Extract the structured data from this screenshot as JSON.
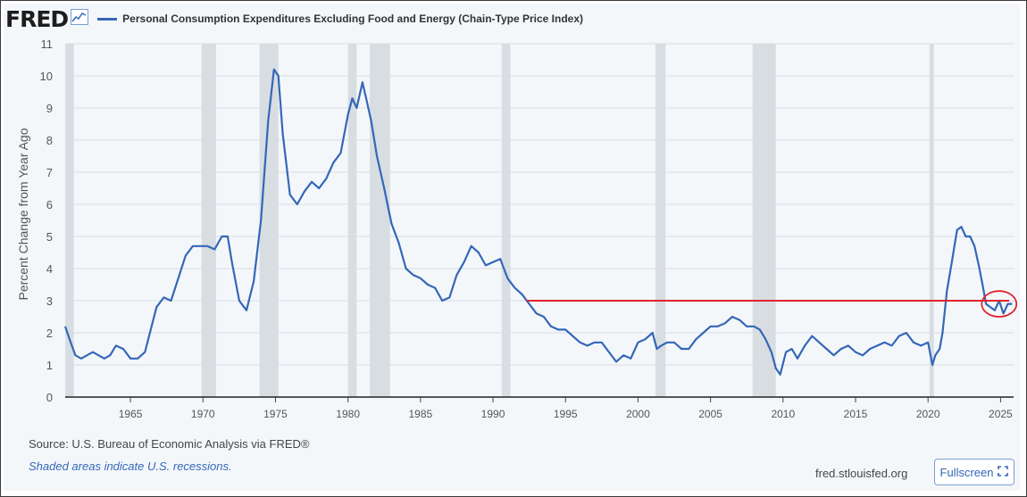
{
  "header": {
    "logo": "FRED",
    "series_title": "Personal Consumption Expenditures Excluding Food and Energy (Chain-Type Price Index)"
  },
  "footer": {
    "source": "Source: U.S. Bureau of Economic Analysis via FRED®",
    "note": "Shaded areas indicate U.S. recessions.",
    "site": "fred.stlouisfed.org",
    "fullscreen_label": "Fullscreen"
  },
  "colors": {
    "series": "#3467b8",
    "recession": "#d8dde2",
    "grid": "#d9dde3",
    "annotation": "#e0242c"
  },
  "chart_data": {
    "type": "line",
    "title": "Personal Consumption Expenditures Excluding Food and Energy (Chain-Type Price Index)",
    "ylabel": "Percent Change from Year Ago",
    "xlabel": "",
    "xlim": [
      1960.5,
      2025.9
    ],
    "ylim": [
      0,
      11
    ],
    "yticks": [
      0,
      1,
      2,
      3,
      4,
      5,
      6,
      7,
      8,
      9,
      10,
      11
    ],
    "xticks": [
      1965,
      1970,
      1975,
      1980,
      1985,
      1990,
      1995,
      2000,
      2005,
      2010,
      2015,
      2020,
      2025
    ],
    "grid": "horizontal",
    "recessions": [
      [
        1960.3,
        1961.1
      ],
      [
        1969.9,
        1970.9
      ],
      [
        1973.9,
        1975.2
      ],
      [
        1980.0,
        1980.6
      ],
      [
        1981.5,
        1982.9
      ],
      [
        1990.6,
        1991.2
      ],
      [
        2001.2,
        2001.9
      ],
      [
        2007.9,
        2009.5
      ],
      [
        2020.1,
        2020.4
      ]
    ],
    "series": [
      {
        "name": "Personal Consumption Expenditures Excluding Food and Energy (Chain-Type Price Index)",
        "x": [
          1960.5,
          1960.8,
          1961.2,
          1961.6,
          1962,
          1962.4,
          1962.8,
          1963.2,
          1963.6,
          1964,
          1964.5,
          1965,
          1965.5,
          1966,
          1966.4,
          1966.8,
          1967.3,
          1967.8,
          1968.3,
          1968.8,
          1969.3,
          1969.8,
          1970.3,
          1970.8,
          1971.3,
          1971.7,
          1972,
          1972.5,
          1973,
          1973.5,
          1974,
          1974.5,
          1974.9,
          1975.2,
          1975.5,
          1976,
          1976.5,
          1977,
          1977.5,
          1978,
          1978.5,
          1979,
          1979.5,
          1980,
          1980.3,
          1980.6,
          1981,
          1981.3,
          1981.6,
          1982,
          1982.5,
          1983,
          1983.5,
          1984,
          1984.5,
          1985,
          1985.5,
          1986,
          1986.5,
          1987,
          1987.5,
          1988,
          1988.5,
          1989,
          1989.5,
          1990,
          1990.5,
          1991,
          1991.5,
          1992,
          1992.5,
          1993,
          1993.5,
          1994,
          1994.5,
          1995,
          1995.5,
          1996,
          1996.5,
          1997,
          1997.5,
          1998,
          1998.5,
          1999,
          1999.5,
          2000,
          2000.5,
          2001,
          2001.3,
          2001.6,
          2002,
          2002.5,
          2003,
          2003.5,
          2004,
          2004.5,
          2005,
          2005.5,
          2006,
          2006.5,
          2007,
          2007.5,
          2008,
          2008.4,
          2008.8,
          2009.2,
          2009.5,
          2009.8,
          2010.2,
          2010.6,
          2011,
          2011.5,
          2012,
          2012.5,
          2013,
          2013.5,
          2014,
          2014.5,
          2015,
          2015.5,
          2016,
          2016.5,
          2017,
          2017.5,
          2018,
          2018.5,
          2019,
          2019.5,
          2020,
          2020.3,
          2020.5,
          2020.8,
          2021,
          2021.3,
          2021.6,
          2022,
          2022.3,
          2022.6,
          2022.9,
          2023.2,
          2023.5,
          2023.8,
          2024,
          2024.3,
          2024.6,
          2024.9,
          2025.2,
          2025.5,
          2025.8
        ],
        "values": [
          2.2,
          1.8,
          1.3,
          1.2,
          1.3,
          1.4,
          1.3,
          1.2,
          1.3,
          1.6,
          1.5,
          1.2,
          1.2,
          1.4,
          2.1,
          2.8,
          3.1,
          3.0,
          3.7,
          4.4,
          4.7,
          4.7,
          4.7,
          4.6,
          5.0,
          5.0,
          4.2,
          3.0,
          2.7,
          3.6,
          5.5,
          8.6,
          10.2,
          10.0,
          8.2,
          6.3,
          6.0,
          6.4,
          6.7,
          6.5,
          6.8,
          7.3,
          7.6,
          8.8,
          9.3,
          9.0,
          9.8,
          9.2,
          8.6,
          7.5,
          6.5,
          5.4,
          4.8,
          4.0,
          3.8,
          3.7,
          3.5,
          3.4,
          3.0,
          3.1,
          3.8,
          4.2,
          4.7,
          4.5,
          4.1,
          4.2,
          4.3,
          3.7,
          3.4,
          3.2,
          2.9,
          2.6,
          2.5,
          2.2,
          2.1,
          2.1,
          1.9,
          1.7,
          1.6,
          1.7,
          1.7,
          1.4,
          1.1,
          1.3,
          1.2,
          1.7,
          1.8,
          2.0,
          1.5,
          1.6,
          1.7,
          1.7,
          1.5,
          1.5,
          1.8,
          2.0,
          2.2,
          2.2,
          2.3,
          2.5,
          2.4,
          2.2,
          2.2,
          2.1,
          1.8,
          1.4,
          0.9,
          0.7,
          1.4,
          1.5,
          1.2,
          1.6,
          1.9,
          1.7,
          1.5,
          1.3,
          1.5,
          1.6,
          1.4,
          1.3,
          1.5,
          1.6,
          1.7,
          1.6,
          1.9,
          2.0,
          1.7,
          1.6,
          1.7,
          1.0,
          1.3,
          1.5,
          2.0,
          3.3,
          4.1,
          5.2,
          5.3,
          5.0,
          5.0,
          4.7,
          4.1,
          3.4,
          2.9,
          2.8,
          2.7,
          3.0,
          2.6,
          2.9,
          2.9
        ]
      }
    ],
    "annotations": [
      {
        "type": "hline",
        "y": 3.0,
        "x_start": 1992.3,
        "x_end": 2025.6,
        "color": "#e0242c"
      },
      {
        "type": "ellipse",
        "x_center": 2024.9,
        "y_center": 2.9,
        "x_radius": 1.2,
        "y_radius": 0.4,
        "color": "#e0242c"
      }
    ]
  }
}
